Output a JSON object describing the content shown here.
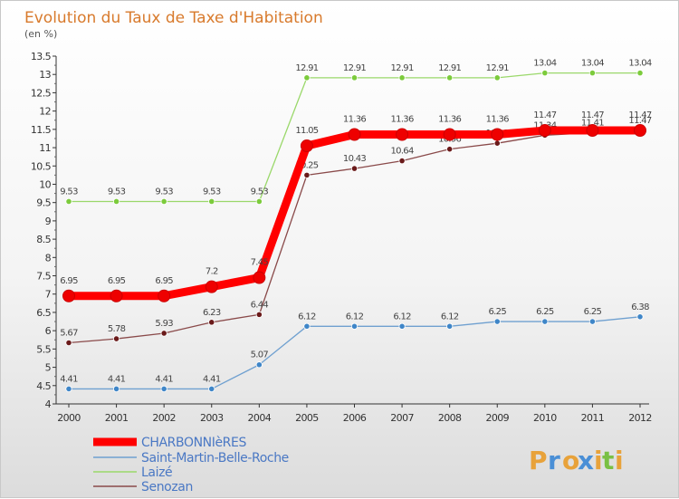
{
  "chart_data": {
    "type": "line",
    "title": "Evolution du Taux de Taxe d'Habitation",
    "subtitle": "(en %)",
    "x": [
      "2000",
      "2001",
      "2002",
      "2003",
      "2004",
      "2005",
      "2006",
      "2007",
      "2008",
      "2009",
      "2010",
      "2011",
      "2012"
    ],
    "ylim": [
      4,
      13.5
    ],
    "yticks": [
      "4",
      "4.5",
      "5",
      "5.5",
      "6",
      "6.5",
      "7",
      "7.5",
      "8",
      "8.5",
      "9",
      "9.5",
      "10",
      "10.5",
      "11",
      "11.5",
      "12",
      "12.5",
      "13",
      "13.5"
    ],
    "grid": false,
    "legend_position": "bottom-left",
    "series": [
      {
        "name": "CHARBONNIèRES",
        "color": "#ff0000",
        "marker": "#ee0000",
        "values": [
          6.95,
          6.95,
          6.95,
          7.2,
          7.45,
          11.05,
          11.36,
          11.36,
          11.36,
          11.36,
          11.47,
          11.47,
          11.47
        ]
      },
      {
        "name": "Saint-Martin-Belle-Roche",
        "color": "#6fa0d0",
        "marker": "#3f86c8",
        "values": [
          4.41,
          4.41,
          4.41,
          4.41,
          5.07,
          6.12,
          6.12,
          6.12,
          6.12,
          6.25,
          6.25,
          6.25,
          6.38
        ]
      },
      {
        "name": "Laizé",
        "color": "#9ad86a",
        "marker": "#7ccb3c",
        "values": [
          9.53,
          9.53,
          9.53,
          9.53,
          9.53,
          12.91,
          12.91,
          12.91,
          12.91,
          12.91,
          13.04,
          13.04,
          13.04
        ]
      },
      {
        "name": "Senozan",
        "color": "#8a4a4a",
        "marker": "#6a1a1a",
        "values": [
          5.67,
          5.78,
          5.93,
          6.23,
          6.44,
          10.25,
          10.43,
          10.64,
          10.96,
          11.12,
          11.34,
          11.41,
          11.47
        ]
      }
    ]
  },
  "logo": {
    "letters": [
      "P",
      "r",
      "o",
      "x",
      "i",
      "t",
      "i"
    ],
    "colors": [
      "#e8a23a",
      "#4a8fd6",
      "#e8a23a",
      "#4a8fd6",
      "#e8a23a",
      "#7ac043",
      "#e8a23a"
    ]
  }
}
